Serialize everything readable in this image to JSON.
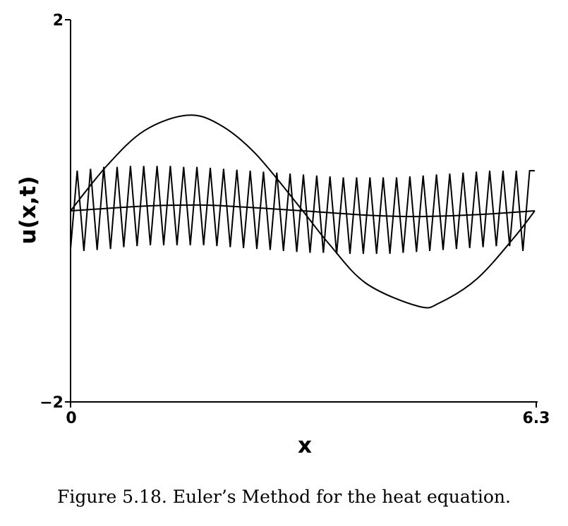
{
  "chart_data": {
    "type": "line",
    "xlabel": "x",
    "ylabel": "u(x,t)",
    "xlim": [
      0,
      6.3
    ],
    "ylim": [
      -2,
      2
    ],
    "x_ticks": [
      "0",
      "6.3"
    ],
    "y_ticks": [
      "2",
      "−2"
    ],
    "grid": false,
    "line_color": "#000000",
    "series": [
      {
        "x": [
          0,
          0.5,
          1.0,
          1.57,
          2.0,
          2.5,
          3.14,
          3.5,
          4.0,
          4.71,
          5.0,
          5.5,
          6.0,
          6.28
        ],
        "y": [
          0,
          0.48,
          0.84,
          1.0,
          0.91,
          0.6,
          0,
          -0.35,
          -0.76,
          -1.0,
          -0.96,
          -0.71,
          -0.28,
          0
        ]
      },
      {
        "x": [
          0,
          1.0,
          1.57,
          2.0,
          3.14,
          4.0,
          4.71,
          5.5,
          6.28
        ],
        "y": [
          0,
          0.05,
          0.06,
          0.055,
          0,
          -0.045,
          -0.06,
          -0.04,
          0
        ]
      },
      {
        "x": [
          0,
          0.09,
          0.18,
          0.27,
          0.36,
          0.45,
          0.54,
          0.63,
          0.72,
          0.81,
          0.9,
          0.99,
          1.08,
          1.17,
          1.26,
          1.35,
          1.44,
          1.53,
          1.62,
          1.71,
          1.8,
          1.89,
          1.98,
          2.07,
          2.16,
          2.25,
          2.34,
          2.43,
          2.52,
          2.61,
          2.7,
          2.79,
          2.88,
          2.97,
          3.06,
          3.15,
          3.24,
          3.33,
          3.42,
          3.51,
          3.6,
          3.69,
          3.78,
          3.87,
          3.96,
          4.05,
          4.14,
          4.23,
          4.32,
          4.41,
          4.5,
          4.59,
          4.68,
          4.77,
          4.86,
          4.95,
          5.04,
          5.13,
          5.22,
          5.31,
          5.4,
          5.49,
          5.58,
          5.67,
          5.76,
          5.85,
          5.94,
          6.03,
          6.12,
          6.21,
          6.28
        ],
        "y": [
          -0.4,
          0.42,
          -0.42,
          0.44,
          -0.41,
          0.46,
          -0.4,
          0.46,
          -0.38,
          0.47,
          -0.37,
          0.47,
          -0.36,
          0.47,
          -0.36,
          0.47,
          -0.36,
          0.46,
          -0.36,
          0.46,
          -0.36,
          0.45,
          -0.37,
          0.44,
          -0.38,
          0.43,
          -0.39,
          0.42,
          -0.4,
          0.41,
          -0.41,
          0.4,
          -0.42,
          0.39,
          -0.43,
          0.38,
          -0.44,
          0.37,
          -0.44,
          0.36,
          -0.45,
          0.35,
          -0.45,
          0.35,
          -0.45,
          0.35,
          -0.45,
          0.35,
          -0.45,
          0.35,
          -0.44,
          0.36,
          -0.43,
          0.37,
          -0.42,
          0.38,
          -0.41,
          0.39,
          -0.4,
          0.4,
          -0.39,
          0.41,
          -0.38,
          0.42,
          -0.37,
          0.42,
          -0.37,
          0.42,
          -0.42,
          0.42,
          0.42
        ]
      }
    ]
  },
  "caption": "Figure 5.18.  Euler’s Method for the heat equation."
}
